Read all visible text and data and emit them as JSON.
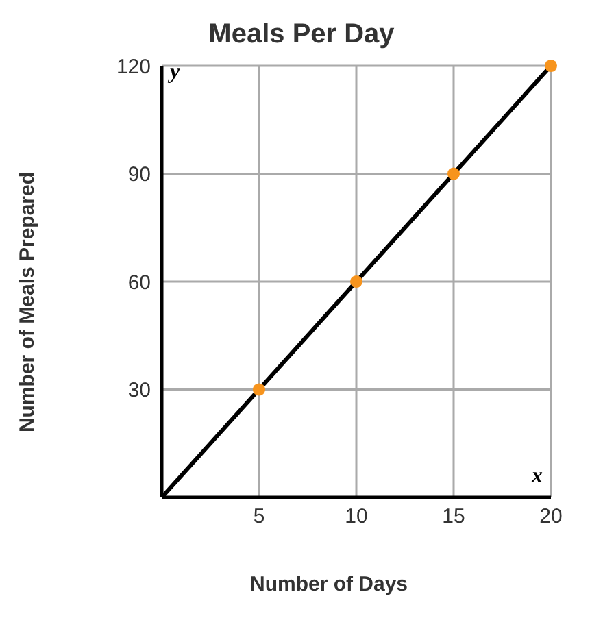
{
  "chart_data": {
    "type": "line",
    "title": "Meals Per Day",
    "xlabel": "Number of Days",
    "ylabel": "Number of Meals Prepared",
    "xlim": [
      0,
      20
    ],
    "ylim": [
      0,
      120
    ],
    "xticks": [
      5,
      10,
      15,
      20
    ],
    "yticks": [
      30,
      60,
      90,
      120
    ],
    "grid": true,
    "legend": false,
    "annotations": [
      "x",
      "y"
    ],
    "series": [
      {
        "color": "#000000",
        "marker": "none",
        "line_style": "solid",
        "x": [
          0,
          5,
          10,
          15,
          20
        ],
        "values": [
          0,
          30,
          60,
          90,
          120
        ]
      },
      {
        "type": "scatter",
        "color": "#f7941d",
        "marker": "circle",
        "x": [
          5,
          10,
          15,
          20
        ],
        "values": [
          30,
          60,
          90,
          120
        ]
      }
    ]
  }
}
